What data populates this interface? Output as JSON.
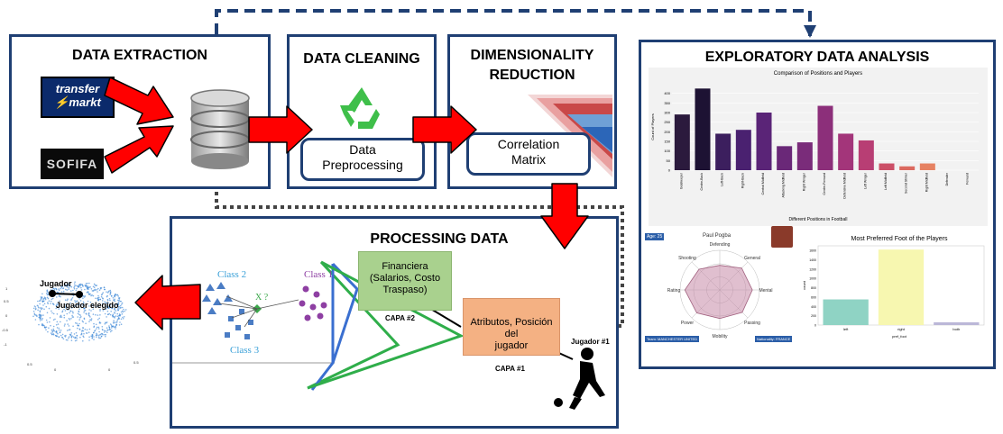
{
  "extraction": {
    "title": "DATA EXTRACTION",
    "logo_tm_line1": "transfer",
    "logo_tm_line2": "markt",
    "logo_sofifa": "SOFIFA"
  },
  "cleaning": {
    "title": "DATA CLEANING",
    "box_line1": "Data",
    "box_line2": "Preprocessing"
  },
  "reduction": {
    "title_line1": "DIMENSIONALITY",
    "title_line2": "REDUCTION",
    "box_line1": "Correlation",
    "box_line2": "Matrix"
  },
  "eda": {
    "title": "EXPLORATORY DATA ANALYSIS",
    "bar_title": "Comparison of Positions and Players",
    "bar_xlabel": "Different Positions in Football",
    "bar_ylabel": "Count of Players",
    "radar_name": "Paul Pogba",
    "radar_age": "Age: 25",
    "radar_team": "Team: MANCHESTER UNITED",
    "radar_nation": "Nationality: FRANCE",
    "foot_title": "Most Preferred Foot of the Players",
    "foot_xlabel": "pref_foot",
    "foot_ylabel": "count"
  },
  "processing": {
    "title": "PROCESSING DATA",
    "class1": "Class 1",
    "class2": "Class 2",
    "class3": "Class 3",
    "xq": "X ?",
    "box_fin_line1": "Financiera",
    "box_fin_line2": "(Salarios, Costo",
    "box_fin_line3": "Traspaso)",
    "capa2": "CAPA #2",
    "box_attr_line1": "Atributos, Posición del",
    "box_attr_line2": "jugador",
    "capa1": "CAPA #1",
    "jugador1": "Jugador #1"
  },
  "scatter3d": {
    "label_jugador": "Jugador",
    "label_elegido": "Jugador elegido"
  },
  "colors": {
    "panel_border": "#1f3f73",
    "arrow_red": "#ff0000",
    "box_green": "#a9d18e",
    "box_orange": "#f4b183"
  },
  "chart_data": [
    {
      "type": "bar",
      "title": "Comparison of Positions and Players",
      "xlabel": "Different Positions in Football",
      "ylabel": "Count of Players",
      "ylim": [
        0,
        450
      ],
      "yticks": [
        0,
        50,
        100,
        150,
        200,
        250,
        300,
        350,
        400
      ],
      "categories": [
        "Goalkeeper",
        "Centre-Back",
        "Left-Back",
        "Right-Back",
        "Central Midfield",
        "Attacking Midfield",
        "Right Winger",
        "Centre-Forward",
        "Defensive Midfield",
        "Left Winger",
        "Left Midfield",
        "Second Striker",
        "Right Midfield",
        "Defender",
        "Forward"
      ],
      "values": [
        290,
        425,
        190,
        210,
        300,
        125,
        145,
        335,
        190,
        155,
        35,
        20,
        35,
        0,
        0
      ],
      "colors": [
        "#2b1a3d",
        "#1d1233",
        "#3c1f5e",
        "#4a2170",
        "#5a2477",
        "#6a2878",
        "#7a2c7a",
        "#8c2f7a",
        "#a3357a",
        "#b83e74",
        "#cc5068",
        "#dc6a60",
        "#e68262",
        "#ee9a6a",
        "#f2b080"
      ]
    },
    {
      "type": "bar",
      "title": "Most Preferred Foot of the Players",
      "xlabel": "pref_foot",
      "ylabel": "count",
      "ylim": [
        0,
        1700
      ],
      "yticks": [
        0,
        200,
        400,
        600,
        800,
        1000,
        1200,
        1400,
        1600
      ],
      "categories": [
        "left",
        "right",
        "both"
      ],
      "values": [
        550,
        1620,
        60
      ],
      "colors": [
        "#8fd3c4",
        "#f7f7b0",
        "#bbb7d8"
      ]
    },
    {
      "type": "radar",
      "title": "Paul Pogba",
      "categories": [
        "Defending",
        "General",
        "Mental",
        "Passing",
        "Mobility",
        "Power",
        "Rating",
        "Shooting"
      ],
      "values": [
        0.62,
        0.78,
        0.82,
        0.8,
        0.72,
        0.82,
        0.88,
        0.74
      ]
    }
  ]
}
